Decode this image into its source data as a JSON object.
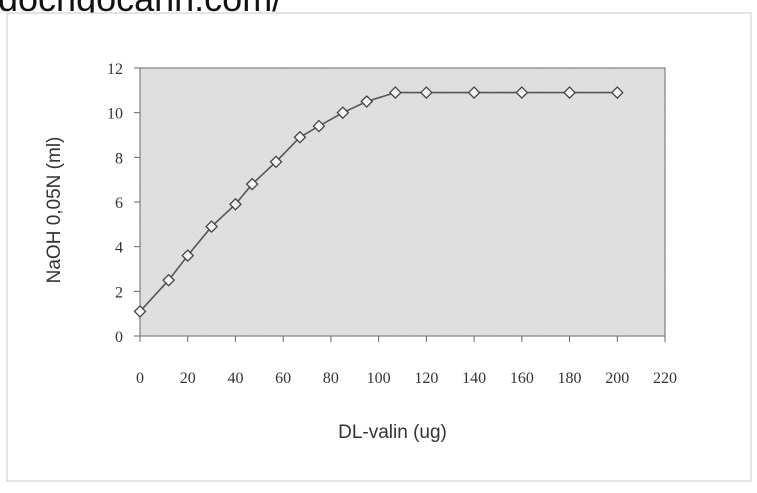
{
  "watermark": "docngocanh.com/",
  "chart_data": {
    "type": "line",
    "title": "",
    "xlabel": "DL-valin (ug)",
    "ylabel": "NaOH 0,05N (ml)",
    "xlim": [
      0,
      220
    ],
    "ylim": [
      0,
      12
    ],
    "xticks": [
      0,
      20,
      40,
      60,
      80,
      100,
      120,
      140,
      160,
      180,
      200,
      220
    ],
    "yticks": [
      0,
      2,
      4,
      6,
      8,
      10,
      12
    ],
    "grid": false,
    "legend": "none",
    "marker": "diamond",
    "colors": {
      "line": "#555555",
      "marker_fill": "#f4f4f4",
      "plot_bg": "#e2e2e2",
      "frame": "#666666"
    },
    "series": [
      {
        "x": [
          0,
          12,
          20,
          30,
          40,
          47,
          57,
          67,
          75,
          85,
          95,
          107,
          120,
          140,
          160,
          180,
          200
        ],
        "y": [
          1.1,
          2.5,
          3.6,
          4.9,
          5.9,
          6.8,
          7.8,
          8.9,
          9.4,
          10.0,
          10.5,
          10.9,
          10.9,
          10.9,
          10.9,
          10.9,
          10.9
        ]
      }
    ]
  }
}
